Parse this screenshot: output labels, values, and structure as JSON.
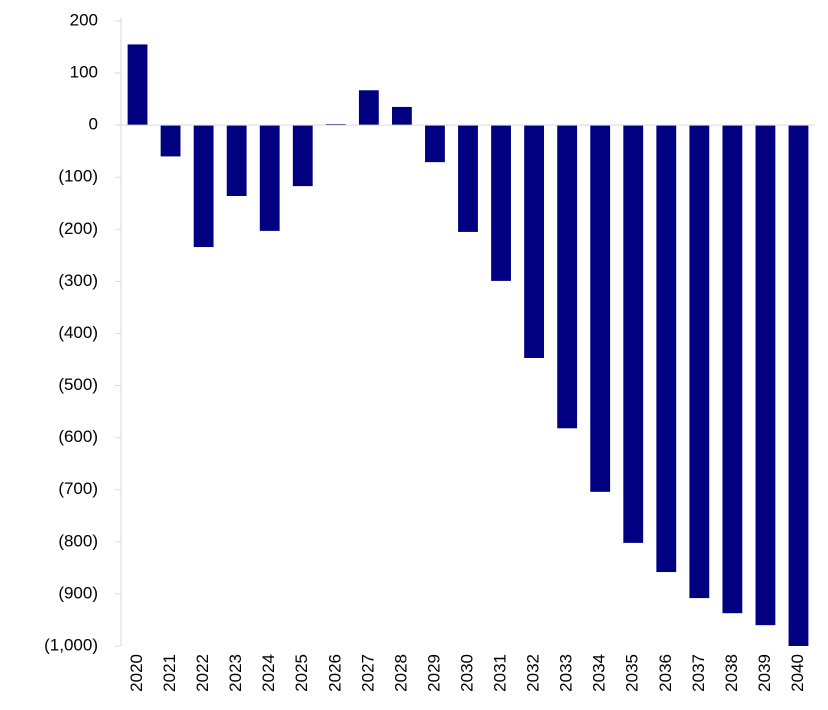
{
  "chart_data": {
    "type": "bar",
    "categories": [
      "2020",
      "2021",
      "2022",
      "2023",
      "2024",
      "2025",
      "2026",
      "2027",
      "2028",
      "2029",
      "2030",
      "2031",
      "2032",
      "2033",
      "2034",
      "2035",
      "2036",
      "2037",
      "2038",
      "2039",
      "2040"
    ],
    "values": [
      155,
      -60,
      -234,
      -136,
      -203,
      -117,
      2,
      67,
      35,
      -71,
      -205,
      -299,
      -447,
      -582,
      -704,
      -802,
      -858,
      -908,
      -937,
      -960,
      -1000
    ],
    "color": "#000080",
    "ylim": [
      -1000,
      200
    ],
    "yticks": [
      200,
      100,
      0,
      {
        "value": -100,
        "label": "(100)"
      },
      {
        "value": -200,
        "label": "(200)"
      },
      {
        "value": -300,
        "label": "(300)"
      },
      {
        "value": -400,
        "label": "(400)"
      },
      {
        "value": -500,
        "label": "(500)"
      },
      {
        "value": -600,
        "label": "(600)"
      },
      {
        "value": -700,
        "label": "(700)"
      },
      {
        "value": -800,
        "label": "(800)"
      },
      {
        "value": -900,
        "label": "(900)"
      },
      {
        "value": -1000,
        "label": "(1,000)"
      }
    ],
    "grid": false
  }
}
